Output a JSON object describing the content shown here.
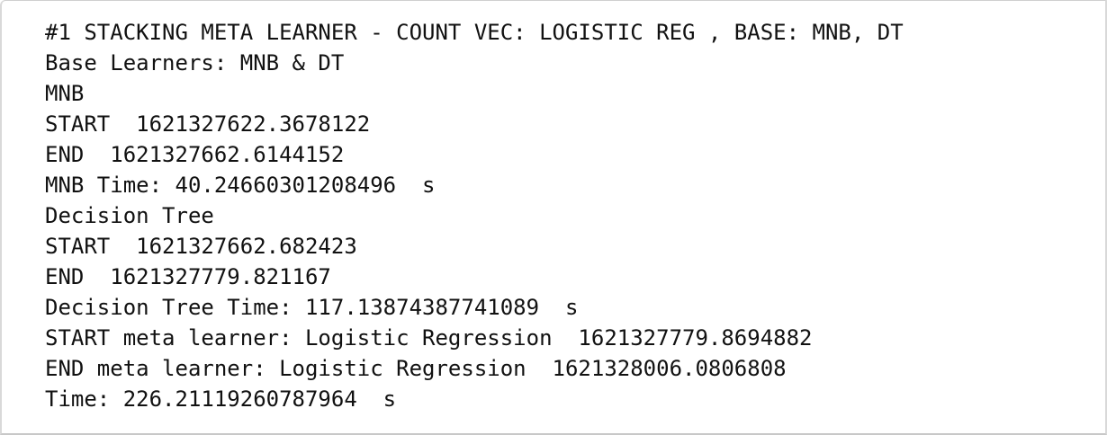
{
  "output": {
    "lines": [
      "#1 STACKING META LEARNER - COUNT VEC: LOGISTIC REG , BASE: MNB, DT",
      "Base Learners: MNB & DT",
      "MNB",
      "START  1621327622.3678122",
      "END  1621327662.6144152",
      "MNB Time: 40.24660301208496  s",
      "Decision Tree",
      "START  1621327662.682423",
      "END  1621327779.821167",
      "Decision Tree Time: 117.13874387741089  s",
      "START meta learner: Logistic Regression  1621327779.8694882",
      "END meta learner: Logistic Regression  1621328006.0806808",
      "Time: 226.21119260787964  s"
    ]
  }
}
